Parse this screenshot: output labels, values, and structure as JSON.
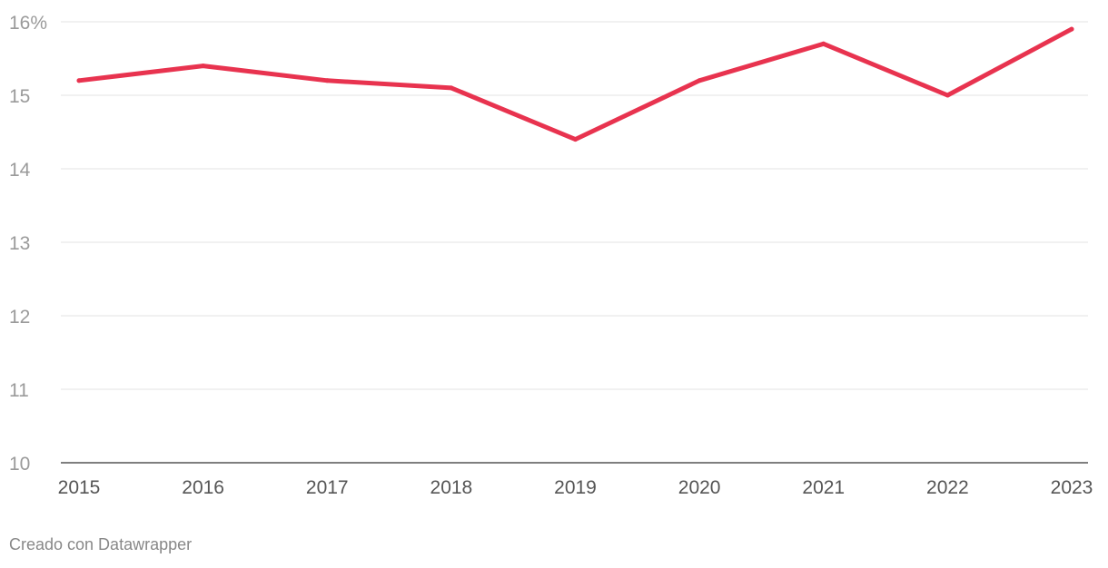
{
  "chart_data": {
    "type": "line",
    "x": [
      "2015",
      "2016",
      "2017",
      "2018",
      "2019",
      "2020",
      "2021",
      "2022",
      "2023"
    ],
    "series": [
      {
        "values": [
          15.2,
          15.4,
          15.2,
          15.1,
          14.4,
          15.2,
          15.7,
          15.0,
          15.9
        ]
      }
    ],
    "y_ticks": [
      {
        "value": 10,
        "label": "10"
      },
      {
        "value": 11,
        "label": "11"
      },
      {
        "value": 12,
        "label": "12"
      },
      {
        "value": 13,
        "label": "13"
      },
      {
        "value": 14,
        "label": "14"
      },
      {
        "value": 15,
        "label": "15"
      },
      {
        "value": 16,
        "label": "16%"
      }
    ],
    "ylim": [
      10,
      16
    ],
    "grid": true,
    "line_color": "#e8334f",
    "title": "",
    "xlabel": "",
    "ylabel": ""
  },
  "footer": {
    "credit": "Creado con Datawrapper"
  }
}
